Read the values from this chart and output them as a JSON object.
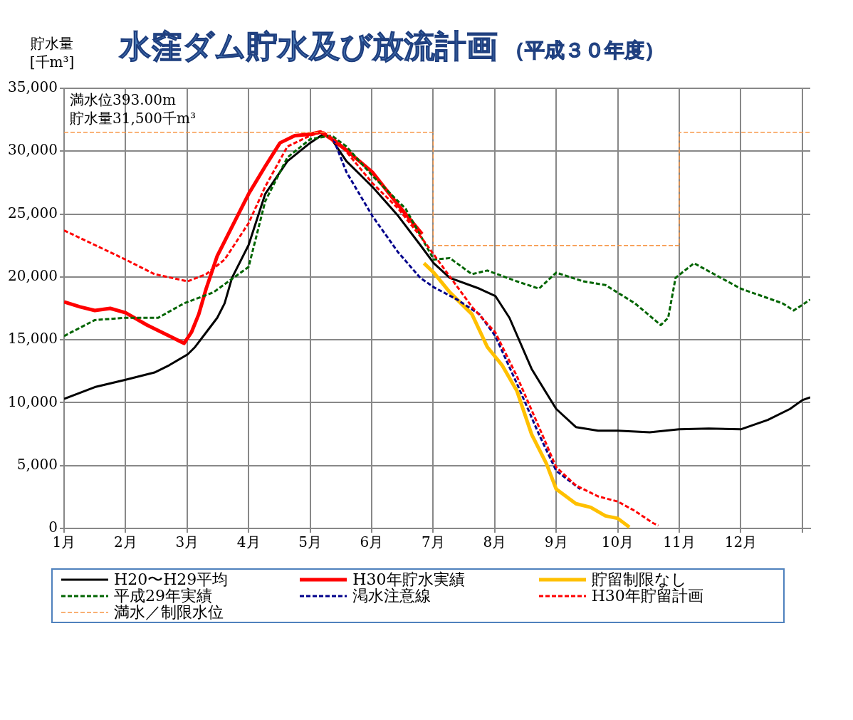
{
  "chart_data": {
    "type": "line",
    "title": "水窪ダム貯水及び放流計画",
    "subtitle": "（平成３０年度）",
    "ylabel": "貯水量[千m³]",
    "xlim": [
      1,
      13.13
    ],
    "xticks": [
      {
        "value": 1,
        "label": "1月"
      },
      {
        "value": 2,
        "label": "2月"
      },
      {
        "value": 3,
        "label": "3月"
      },
      {
        "value": 4,
        "label": "4月"
      },
      {
        "value": 5,
        "label": "5月"
      },
      {
        "value": 6,
        "label": "6月"
      },
      {
        "value": 7,
        "label": "7月"
      },
      {
        "value": 8,
        "label": "8月"
      },
      {
        "value": 9,
        "label": "9月"
      },
      {
        "value": 10,
        "label": "10月"
      },
      {
        "value": 11,
        "label": "11月"
      },
      {
        "value": 12,
        "label": "12月"
      },
      {
        "value": 13,
        "label": null
      }
    ],
    "ylim": [
      0,
      35000
    ],
    "yticks": [
      0,
      {
        "value": 5000,
        "label": "5,000"
      },
      {
        "value": 10000,
        "label": "10,000"
      },
      {
        "value": 15000,
        "label": "15,000"
      },
      {
        "value": 20000,
        "label": "20,000"
      },
      {
        "value": 25000,
        "label": "25,000"
      },
      {
        "value": 30000,
        "label": "30,000"
      },
      {
        "value": 35000,
        "label": "35,000"
      }
    ],
    "grid": true,
    "legend": "bottom",
    "marker": "none",
    "annotations": [
      "満水位393.00m",
      "貯水量31,500千m³"
    ],
    "series": [
      {
        "name": "H20〜H29平均",
        "color": "#000000",
        "line_style": "solid",
        "x": [
          1,
          1.5,
          2,
          2.47,
          2.71,
          3.01,
          3.13,
          3.31,
          3.49,
          3.61,
          3.73,
          4,
          4.27,
          4.63,
          5,
          5.21,
          5.35,
          5.59,
          6.01,
          6.43,
          6.79,
          7.01,
          7.27,
          7.75,
          8.01,
          8.24,
          8.6,
          9,
          9.32,
          9.68,
          10,
          10.52,
          11,
          11.48,
          12,
          12.44,
          12.8,
          13,
          13.13
        ],
        "values": [
          10300,
          11240,
          11820,
          12400,
          12980,
          13850,
          14430,
          15590,
          16750,
          17900,
          19930,
          22540,
          26600,
          29200,
          30660,
          31350,
          30950,
          29200,
          27180,
          24860,
          22540,
          21090,
          19930,
          19070,
          18490,
          16750,
          12690,
          9500,
          8060,
          7770,
          7770,
          7650,
          7880,
          7940,
          7880,
          8630,
          9500,
          10200,
          10430
        ]
      },
      {
        "name": "H30年貯水実績",
        "color": "#ff0000",
        "line_style": "solid",
        "x": [
          1,
          1.26,
          1.5,
          1.75,
          2,
          2.35,
          2.71,
          2.95,
          3.07,
          3.19,
          3.31,
          3.49,
          3.73,
          4,
          4.27,
          4.51,
          4.75,
          5,
          5.17,
          5.35,
          5.59,
          6.01,
          6.43,
          6.82
        ],
        "values": [
          18020,
          17620,
          17330,
          17500,
          17150,
          16170,
          15300,
          14720,
          15590,
          17040,
          19070,
          21670,
          23990,
          26600,
          28800,
          30660,
          31240,
          31350,
          31530,
          30950,
          30080,
          28340,
          25730,
          23410
        ]
      },
      {
        "name": "貯留制限なし",
        "color": "#ffc000",
        "line_style": "solid",
        "x": [
          6.85,
          7.01,
          7.27,
          7.63,
          7.88,
          8.12,
          8.36,
          8.6,
          8.84,
          9,
          9.32,
          9.56,
          9.8,
          10,
          10.19
        ],
        "values": [
          21090,
          20340,
          18780,
          17040,
          14430,
          12980,
          10950,
          7480,
          5160,
          3130,
          1970,
          1680,
          1000,
          800,
          100
        ]
      },
      {
        "name": "平成29年実績",
        "color": "#006400",
        "line_style": "dashed",
        "x": [
          1,
          1.5,
          2,
          2.53,
          2.95,
          3.43,
          4,
          4.27,
          4.63,
          5,
          5.35,
          5.59,
          6.01,
          6.55,
          7.01,
          7.27,
          7.63,
          7.88,
          8.36,
          8.72,
          9,
          9.44,
          9.8,
          10.28,
          10.7,
          10.82,
          10.94,
          11.24,
          12,
          12.68,
          12.86,
          13.13
        ],
        "values": [
          15300,
          16570,
          16750,
          16750,
          17900,
          18780,
          20800,
          26020,
          29500,
          30950,
          31240,
          30370,
          28050,
          25440,
          21380,
          21500,
          20220,
          20510,
          19650,
          19070,
          20340,
          19650,
          19360,
          17900,
          16170,
          16750,
          19930,
          21090,
          19070,
          17900,
          17330,
          18200
        ]
      },
      {
        "name": "渇水注意線",
        "color": "#00008b",
        "line_style": "dashed",
        "x": [
          5.38,
          5.59,
          6.01,
          6.43,
          6.79,
          7.01,
          7.39,
          7.75,
          8.01,
          8.36,
          8.72,
          9,
          9.39
        ],
        "values": [
          30950,
          28340,
          24860,
          21960,
          19930,
          19180,
          18200,
          17040,
          15300,
          11530,
          7480,
          4580,
          3130
        ]
      },
      {
        "name": "H30年貯留計画",
        "color": "#ff0000",
        "line_style": "dashed",
        "x": [
          1,
          1.5,
          2,
          2.47,
          3.01,
          3.31,
          3.61,
          4,
          4.27,
          4.63,
          5,
          5.21,
          5.47,
          6.01,
          6.43,
          6.81,
          7.63,
          8.01,
          8.36,
          8.72,
          9,
          9.32,
          9.68,
          10,
          10.28,
          10.58,
          10.66
        ],
        "values": [
          23700,
          22540,
          21380,
          20220,
          19650,
          20220,
          21380,
          24280,
          27180,
          30370,
          31240,
          31530,
          30660,
          27470,
          25440,
          23120,
          17620,
          15590,
          12110,
          8060,
          4870,
          3420,
          2550,
          2140,
          1390,
          410,
          230
        ]
      },
      {
        "name": "満水／制限水位",
        "color": "#f79646",
        "line_style": "dashed",
        "x": [
          1,
          7,
          7,
          11,
          11,
          13.13
        ],
        "values": [
          31500,
          31500,
          22500,
          22500,
          31500,
          31500
        ]
      }
    ]
  }
}
